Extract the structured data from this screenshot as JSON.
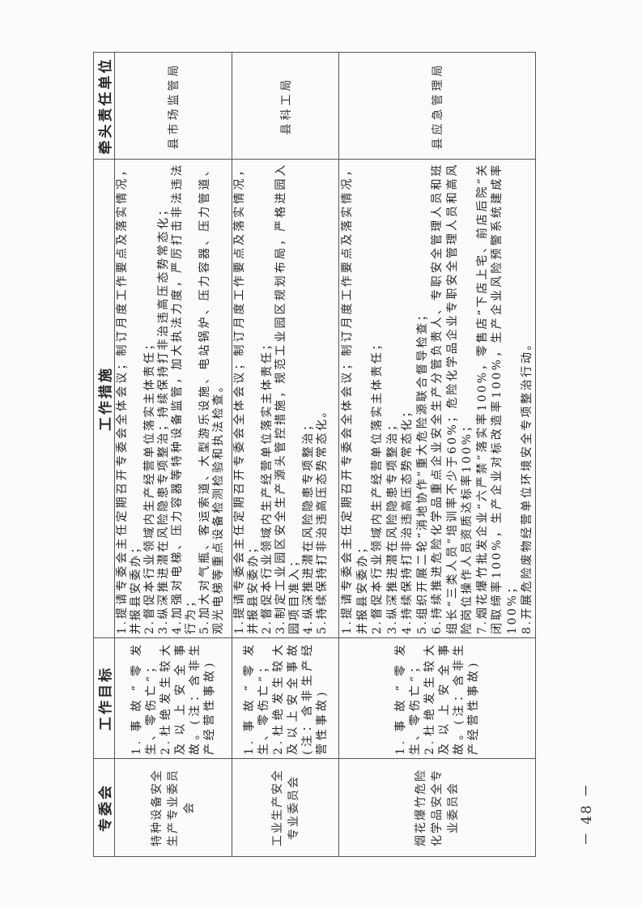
{
  "table": {
    "headers": [
      "专委会",
      "工作目标",
      "工作措施",
      "牵头责任单位"
    ],
    "rows": [
      {
        "committee": "特种设备安全生产专业委员会",
        "goals": [
          "1.事故“零发生、零伤亡”；",
          "2.杜绝发生较大及以上安全事故。(注：含非生产经营性事故)"
        ],
        "measures": [
          "1.提请专委会主任定期召开专委会全体会议；制订月度工作要点及落实情况，并报县安委办；",
          "2.督促本行业领域内生产经营单位落实主体责任；",
          "3.纵深推进潜在风险隐患专项整治；持续保持打非治违高压态势常态化；",
          "4.加强对电梯、压力容器等特种设备监管，加大执法力度，严厉打击非法违法行为；",
          "5.加大对气瓶、客运索道、大型游乐设施、电站锅炉、压力容器、压力管道、观光电梯等重点设备检测检验和执法检查。"
        ],
        "lead": "县市场监管局"
      },
      {
        "committee": "工业生产安全专业委员会",
        "goals": [
          "1.事故“零发生、零伤亡”；",
          "2.杜绝发生较大及以上安全事故(注：含非生产经营性事故)"
        ],
        "measures": [
          "1.提请专委会主任定期召开专委会全体会议；制订月度工作要点及落实情况，并报县安委办；",
          "2.督促本行业领域内生产经营单位落实主体责任；",
          "3.制定工业园区安全生产源头管控措施，规范工业园区规划布局，严格进园入园项目准入；",
          "4.纵深推进潜在风险隐患专项整治；",
          "5.持续保持打非治违高压态势常态化。"
        ],
        "lead": "县科工局"
      },
      {
        "committee": "烟花爆竹危险化学品安全专业委员会",
        "goals": [
          "1.事故“零发生、零伤亡”；",
          "2.杜绝发生较大及以上安全事故。(注：含非生产经营性事故)"
        ],
        "measures": [
          "1.提请专委会主任定期召开专委会全体会议；制订月度工作要点及落实情况，并报县安委办；",
          "2.督促本行业领域内生产经营单位落实主体责任；",
          "3.纵深推进潜在风险隐患专项整治；",
          "4.持续保持打非治违高压态势常态化；",
          "5.组织开展二轮“消地协作”重大危险源联合督导检查；",
          "6.持续推进危险化学品重点企业安全生产分管负责人、专职安全管理人员和班组长“三类人员”培训率不少于60%；危险化学品企业专职安全管理人员和高风险岗位操作人员资质达标率100%；",
          "7.烟花爆竹批发企业“六严禁”落实率100%，零售店“下店上宅、前店后院”关闭取缔率100%，生产企业对标改造率100%，生产企业风险预警系统建成率100%；",
          "8.开展危险废物经营单位环境安全专项整治行动。"
        ],
        "lead": "县应急管理局"
      }
    ]
  },
  "page_number": "－ 48 －"
}
